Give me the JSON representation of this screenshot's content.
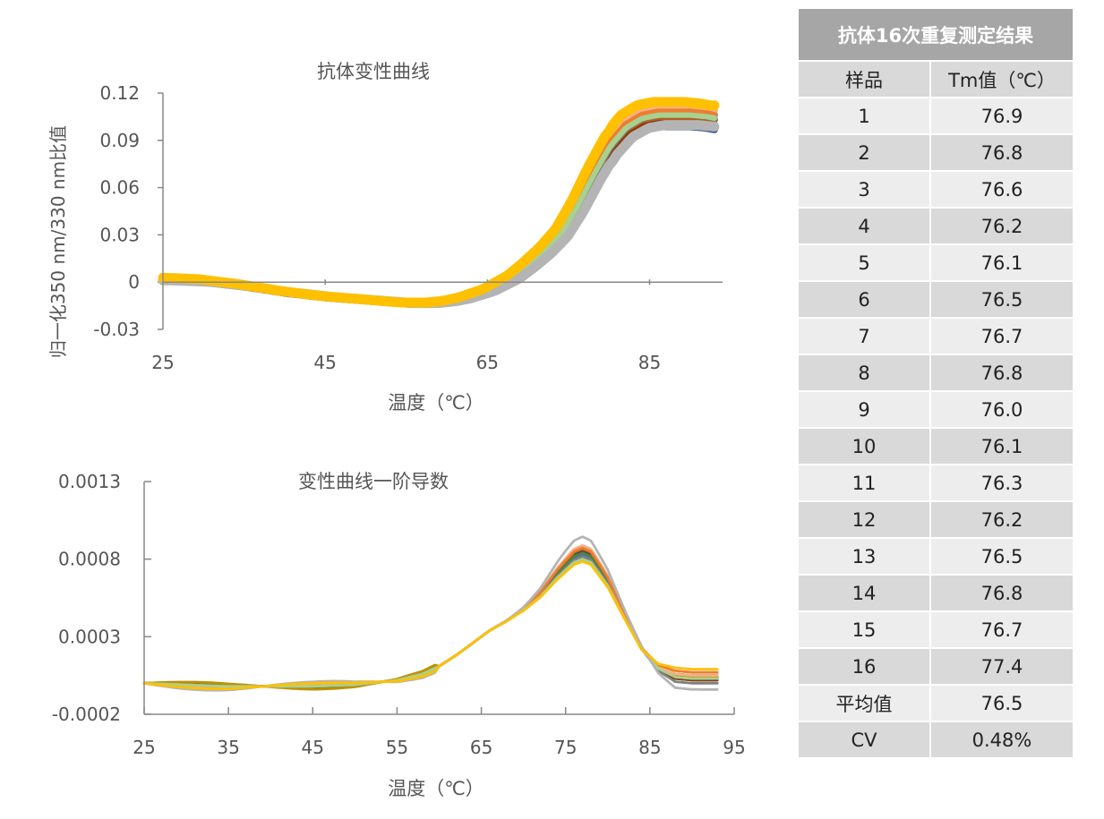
{
  "chart_data": [
    {
      "type": "line",
      "title": "抗体变性曲线",
      "xlabel": "温度（℃）",
      "ylabel": "归一化350 nm/330 nm比值",
      "xlim": [
        25,
        94
      ],
      "ylim": [
        -0.03,
        0.12
      ],
      "xticks": [
        "25",
        "45",
        "65",
        "85"
      ],
      "yticks": [
        "0.12",
        "0.09",
        "0.06",
        "0.03",
        "0",
        "-0.03"
      ],
      "grid": false,
      "legend": "none",
      "x": [
        25,
        30,
        35,
        40,
        45,
        50,
        55,
        58,
        60,
        62,
        65,
        68,
        70,
        72,
        74,
        76,
        78,
        80,
        82,
        84,
        86,
        88,
        90,
        92,
        93
      ],
      "base": [
        0.002,
        0.001,
        -0.002,
        -0.006,
        -0.009,
        -0.011,
        -0.013,
        -0.013,
        -0.012,
        -0.01,
        -0.005,
        0.003,
        0.011,
        0.02,
        0.031,
        0.048,
        0.068,
        0.086,
        0.098,
        0.104,
        0.106,
        0.106,
        0.106,
        0.105,
        0.104
      ],
      "series": [
        {
          "color": "#2f5597",
          "xshift": 0.0,
          "amp": 0.95,
          "yshift": -0.002,
          "width": 8
        },
        {
          "color": "#4472c4",
          "xshift": -0.3,
          "amp": 1.0,
          "yshift": -0.001,
          "width": 8
        },
        {
          "color": "#5b9bd5",
          "xshift": -0.4,
          "amp": 1.02,
          "yshift": 0.0,
          "width": 8
        },
        {
          "color": "#264478",
          "xshift": 0.2,
          "amp": 0.98,
          "yshift": -0.003,
          "width": 8
        },
        {
          "color": "#843c0c",
          "xshift": 0.3,
          "amp": 0.97,
          "yshift": -0.001,
          "width": 7
        },
        {
          "color": "#c55a11",
          "xshift": 0.1,
          "amp": 0.99,
          "yshift": 0.0,
          "width": 7
        },
        {
          "color": "#548235",
          "xshift": 0.0,
          "amp": 1.0,
          "yshift": 0.0,
          "width": 7
        },
        {
          "color": "#7f7f7f",
          "xshift": 0.2,
          "amp": 1.0,
          "yshift": 0.0,
          "width": 7
        },
        {
          "color": "#bf9000",
          "xshift": -0.1,
          "amp": 1.03,
          "yshift": 0.001,
          "width": 7
        },
        {
          "color": "#f4b183",
          "xshift": -0.2,
          "amp": 1.04,
          "yshift": 0.001,
          "width": 8
        },
        {
          "color": "#ed7d31",
          "xshift": 0.0,
          "amp": 1.02,
          "yshift": 0.0,
          "width": 7
        },
        {
          "color": "#a9d18e",
          "xshift": 0.1,
          "amp": 1.0,
          "yshift": 0.0,
          "width": 6
        },
        {
          "color": "#b4b4b4",
          "xshift": 0.9,
          "amp": 0.96,
          "yshift": -0.002,
          "width": 11
        },
        {
          "color": "#ffc000",
          "xshift": -0.6,
          "amp": 1.06,
          "yshift": 0.002,
          "width": 11
        }
      ]
    },
    {
      "type": "line",
      "title": "变性曲线一阶导数",
      "xlabel": "温度（℃）",
      "ylabel": "",
      "xlim": [
        25,
        95
      ],
      "ylim": [
        -0.0002,
        0.0013
      ],
      "xticks": [
        "25",
        "35",
        "45",
        "55",
        "65",
        "75",
        "85",
        "95"
      ],
      "yticks": [
        "0.0013",
        "0.0008",
        "0.0003",
        "-0.0002"
      ],
      "grid": false,
      "legend": "none",
      "x": [
        25,
        30,
        35,
        40,
        45,
        50,
        55,
        58,
        60,
        62,
        64,
        66,
        68,
        70,
        72,
        74,
        76,
        77,
        78,
        80,
        82,
        84,
        86,
        88,
        90,
        92,
        93
      ],
      "base": [
        0.0,
        -1e-05,
        -2e-05,
        -2e-05,
        -2e-05,
        -1e-05,
        2e-05,
        6e-05,
        0.00011,
        0.00018,
        0.00026,
        0.00034,
        0.0004,
        0.00047,
        0.00056,
        0.00068,
        0.00078,
        0.0008,
        0.00078,
        0.00063,
        0.00042,
        0.00022,
        0.0001,
        5e-05,
        4e-05,
        4e-05,
        4e-05
      ],
      "series": [
        {
          "color": "#2f5597",
          "amp": 1.05,
          "tail": 0.0,
          "wiggle": 1e-05
        },
        {
          "color": "#4472c4",
          "amp": 1.03,
          "tail": 1e-05,
          "wiggle": -1e-05
        },
        {
          "color": "#5b9bd5",
          "amp": 1.0,
          "tail": 0.0,
          "wiggle": 0.0
        },
        {
          "color": "#264478",
          "amp": 1.07,
          "tail": -2e-05,
          "wiggle": 1e-05
        },
        {
          "color": "#843c0c",
          "amp": 1.1,
          "tail": -2e-05,
          "wiggle": 0.0
        },
        {
          "color": "#c55a11",
          "amp": 1.08,
          "tail": 0.0,
          "wiggle": 0.0
        },
        {
          "color": "#548235",
          "amp": 1.05,
          "tail": 1e-05,
          "wiggle": 1e-05
        },
        {
          "color": "#7f7f7f",
          "amp": 1.02,
          "tail": -4e-05,
          "wiggle": 0.0
        },
        {
          "color": "#bf9000",
          "amp": 1.1,
          "tail": 0.0,
          "wiggle": 2e-05
        },
        {
          "color": "#f4b183",
          "amp": 1.11,
          "tail": 1e-05,
          "wiggle": -1e-05
        },
        {
          "color": "#ed7d31",
          "amp": 1.09,
          "tail": 3e-05,
          "wiggle": 0.0
        },
        {
          "color": "#a9d18e",
          "amp": 1.0,
          "tail": -1e-05,
          "wiggle": 0.0
        },
        {
          "color": "#b4b4b4",
          "amp": 1.18,
          "tail": -8e-05,
          "wiggle": -3e-05
        },
        {
          "color": "#ffc000",
          "amp": 0.98,
          "tail": 5e-05,
          "wiggle": -2e-05
        }
      ]
    },
    {
      "type": "table",
      "title": "抗体16次重复测定结果",
      "columns": [
        "样品",
        "Tm值（℃）"
      ],
      "rows": [
        [
          "1",
          "76.9"
        ],
        [
          "2",
          "76.8"
        ],
        [
          "3",
          "76.6"
        ],
        [
          "4",
          "76.2"
        ],
        [
          "5",
          "76.1"
        ],
        [
          "6",
          "76.5"
        ],
        [
          "7",
          "76.7"
        ],
        [
          "8",
          "76.8"
        ],
        [
          "9",
          "76.0"
        ],
        [
          "10",
          "76.1"
        ],
        [
          "11",
          "76.3"
        ],
        [
          "12",
          "76.2"
        ],
        [
          "13",
          "76.5"
        ],
        [
          "14",
          "76.8"
        ],
        [
          "15",
          "76.7"
        ],
        [
          "16",
          "77.4"
        ],
        [
          "平均值",
          "76.5"
        ],
        [
          "CV",
          "0.48%"
        ]
      ]
    }
  ]
}
